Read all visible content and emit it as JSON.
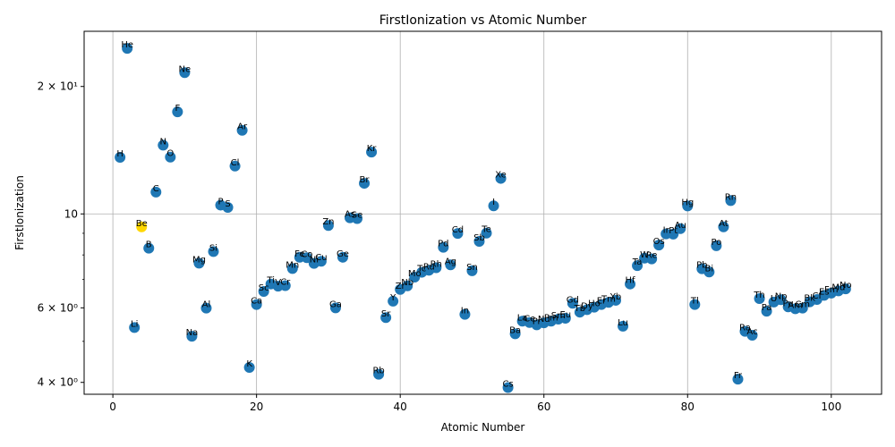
{
  "chart_data": {
    "type": "scatter",
    "title": "FirstIonization vs Atomic Number",
    "xlabel": "Atomic Number",
    "ylabel": "FirstIonization",
    "xlim": [
      -4,
      107
    ],
    "ylim": [
      3.75,
      27.0
    ],
    "yscale": "log",
    "grid": true,
    "x_ticks": [
      0,
      20,
      40,
      60,
      80,
      100
    ],
    "x_tick_labels": [
      "0",
      "20",
      "40",
      "60",
      "80",
      "100"
    ],
    "y_ticks": [
      4,
      6,
      10,
      20
    ],
    "y_tick_labels": [
      "4 × 10⁰",
      "6 × 10⁰",
      "10",
      "2 × 10¹"
    ],
    "colors": {
      "point": "#1f77b4",
      "highlight": "#ffd700",
      "grid": "#b0b0b0"
    },
    "points": [
      {
        "label": "H",
        "x": 1,
        "y": 13.6
      },
      {
        "label": "He",
        "x": 2,
        "y": 24.6
      },
      {
        "label": "Li",
        "x": 3,
        "y": 5.39
      },
      {
        "label": "Be",
        "x": 4,
        "y": 9.32,
        "highlight": true
      },
      {
        "label": "B",
        "x": 5,
        "y": 8.3
      },
      {
        "label": "C",
        "x": 6,
        "y": 11.26
      },
      {
        "label": "N",
        "x": 7,
        "y": 14.53
      },
      {
        "label": "O",
        "x": 8,
        "y": 13.62
      },
      {
        "label": "F",
        "x": 9,
        "y": 17.42
      },
      {
        "label": "Ne",
        "x": 10,
        "y": 21.56
      },
      {
        "label": "Na",
        "x": 11,
        "y": 5.14
      },
      {
        "label": "Mg",
        "x": 12,
        "y": 7.65
      },
      {
        "label": "Al",
        "x": 13,
        "y": 5.99
      },
      {
        "label": "Si",
        "x": 14,
        "y": 8.15
      },
      {
        "label": "P",
        "x": 15,
        "y": 10.49
      },
      {
        "label": "S",
        "x": 16,
        "y": 10.36
      },
      {
        "label": "Cl",
        "x": 17,
        "y": 12.97
      },
      {
        "label": "Ar",
        "x": 18,
        "y": 15.76
      },
      {
        "label": "K",
        "x": 19,
        "y": 4.34
      },
      {
        "label": "Ca",
        "x": 20,
        "y": 6.11
      },
      {
        "label": "Sc",
        "x": 21,
        "y": 6.56
      },
      {
        "label": "Ti",
        "x": 22,
        "y": 6.83
      },
      {
        "label": "V",
        "x": 23,
        "y": 6.75
      },
      {
        "label": "Cr",
        "x": 24,
        "y": 6.77
      },
      {
        "label": "Mn",
        "x": 25,
        "y": 7.43
      },
      {
        "label": "Fe",
        "x": 26,
        "y": 7.9
      },
      {
        "label": "Co",
        "x": 27,
        "y": 7.88
      },
      {
        "label": "Ni",
        "x": 28,
        "y": 7.64
      },
      {
        "label": "Cu",
        "x": 29,
        "y": 7.73
      },
      {
        "label": "Zn",
        "x": 30,
        "y": 9.39
      },
      {
        "label": "Ga",
        "x": 31,
        "y": 6.0
      },
      {
        "label": "Ge",
        "x": 32,
        "y": 7.9
      },
      {
        "label": "As",
        "x": 33,
        "y": 9.79
      },
      {
        "label": "Se",
        "x": 34,
        "y": 9.75
      },
      {
        "label": "Br",
        "x": 35,
        "y": 11.81
      },
      {
        "label": "Kr",
        "x": 36,
        "y": 14.0
      },
      {
        "label": "Rb",
        "x": 37,
        "y": 4.18
      },
      {
        "label": "Sr",
        "x": 38,
        "y": 5.69
      },
      {
        "label": "Y",
        "x": 39,
        "y": 6.22
      },
      {
        "label": "Zr",
        "x": 40,
        "y": 6.63
      },
      {
        "label": "Nb",
        "x": 41,
        "y": 6.76
      },
      {
        "label": "Mo",
        "x": 42,
        "y": 7.09
      },
      {
        "label": "Tc",
        "x": 43,
        "y": 7.28
      },
      {
        "label": "Ru",
        "x": 44,
        "y": 7.36
      },
      {
        "label": "Rh",
        "x": 45,
        "y": 7.46
      },
      {
        "label": "Pd",
        "x": 46,
        "y": 8.34
      },
      {
        "label": "Ag",
        "x": 47,
        "y": 7.58
      },
      {
        "label": "Cd",
        "x": 48,
        "y": 8.99
      },
      {
        "label": "In",
        "x": 49,
        "y": 5.79
      },
      {
        "label": "Sn",
        "x": 50,
        "y": 7.34
      },
      {
        "label": "Sb",
        "x": 51,
        "y": 8.61
      },
      {
        "label": "Te",
        "x": 52,
        "y": 9.01
      },
      {
        "label": "I",
        "x": 53,
        "y": 10.45
      },
      {
        "label": "Xe",
        "x": 54,
        "y": 12.13
      },
      {
        "label": "Cs",
        "x": 55,
        "y": 3.89
      },
      {
        "label": "Ba",
        "x": 56,
        "y": 5.21
      },
      {
        "label": "La",
        "x": 57,
        "y": 5.58
      },
      {
        "label": "Ce",
        "x": 58,
        "y": 5.54
      },
      {
        "label": "Pr",
        "x": 59,
        "y": 5.47
      },
      {
        "label": "Nd",
        "x": 60,
        "y": 5.53
      },
      {
        "label": "Pm",
        "x": 61,
        "y": 5.58
      },
      {
        "label": "Sm",
        "x": 62,
        "y": 5.64
      },
      {
        "label": "Eu",
        "x": 63,
        "y": 5.67
      },
      {
        "label": "Gd",
        "x": 64,
        "y": 6.15
      },
      {
        "label": "Tb",
        "x": 65,
        "y": 5.86
      },
      {
        "label": "Dy",
        "x": 66,
        "y": 5.94
      },
      {
        "label": "Ho",
        "x": 67,
        "y": 6.02
      },
      {
        "label": "Er",
        "x": 68,
        "y": 6.11
      },
      {
        "label": "Tm",
        "x": 69,
        "y": 6.18
      },
      {
        "label": "Yb",
        "x": 70,
        "y": 6.25
      },
      {
        "label": "Lu",
        "x": 71,
        "y": 5.43
      },
      {
        "label": "Hf",
        "x": 72,
        "y": 6.83
      },
      {
        "label": "Ta",
        "x": 73,
        "y": 7.55
      },
      {
        "label": "W",
        "x": 74,
        "y": 7.86
      },
      {
        "label": "Re",
        "x": 75,
        "y": 7.83
      },
      {
        "label": "Os",
        "x": 76,
        "y": 8.44
      },
      {
        "label": "Ir",
        "x": 77,
        "y": 8.97
      },
      {
        "label": "Pt",
        "x": 78,
        "y": 8.96
      },
      {
        "label": "Au",
        "x": 79,
        "y": 9.23
      },
      {
        "label": "Hg",
        "x": 80,
        "y": 10.44
      },
      {
        "label": "Tl",
        "x": 81,
        "y": 6.11
      },
      {
        "label": "Pb",
        "x": 82,
        "y": 7.42
      },
      {
        "label": "Bi",
        "x": 83,
        "y": 7.29
      },
      {
        "label": "Po",
        "x": 84,
        "y": 8.41
      },
      {
        "label": "At",
        "x": 85,
        "y": 9.32
      },
      {
        "label": "Rn",
        "x": 86,
        "y": 10.75
      },
      {
        "label": "Fr",
        "x": 87,
        "y": 4.07
      },
      {
        "label": "Ra",
        "x": 88,
        "y": 5.28
      },
      {
        "label": "Ac",
        "x": 89,
        "y": 5.17
      },
      {
        "label": "Th",
        "x": 90,
        "y": 6.31
      },
      {
        "label": "Pa",
        "x": 91,
        "y": 5.89
      },
      {
        "label": "U",
        "x": 92,
        "y": 6.19
      },
      {
        "label": "Np",
        "x": 93,
        "y": 6.27
      },
      {
        "label": "Pu",
        "x": 94,
        "y": 6.03
      },
      {
        "label": "Am",
        "x": 95,
        "y": 5.97
      },
      {
        "label": "Cm",
        "x": 96,
        "y": 5.99
      },
      {
        "label": "Bk",
        "x": 97,
        "y": 6.2
      },
      {
        "label": "Cf",
        "x": 98,
        "y": 6.28
      },
      {
        "label": "Es",
        "x": 99,
        "y": 6.42
      },
      {
        "label": "Fm",
        "x": 100,
        "y": 6.5
      },
      {
        "label": "Md",
        "x": 101,
        "y": 6.58
      },
      {
        "label": "No",
        "x": 102,
        "y": 6.65
      }
    ]
  }
}
